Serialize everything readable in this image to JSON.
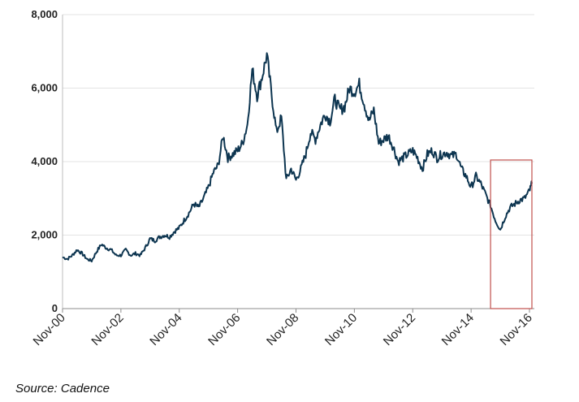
{
  "chart_data": {
    "type": "line",
    "title": "",
    "xlabel": "",
    "ylabel": "",
    "ylim": [
      0,
      8000
    ],
    "y_ticks": [
      "0",
      "2,000",
      "4,000",
      "6,000",
      "8,000"
    ],
    "x_ticks": [
      "Nov-00",
      "Nov-02",
      "Nov-04",
      "Nov-06",
      "Nov-08",
      "Nov-10",
      "Nov-12",
      "Nov-14",
      "Nov-16"
    ],
    "grid": "horizontal",
    "legend": "none",
    "line_color": "#0d3550",
    "highlight_color": "#c0504d",
    "highlight_box": {
      "x_start": "Jul-15",
      "x_end": "Jan-17",
      "y_start": 0,
      "y_end": 4000
    },
    "series": [
      {
        "x": [
          "Nov-00",
          "Jan-01",
          "Mar-01",
          "May-01",
          "Jul-01",
          "Sep-01",
          "Nov-01",
          "Jan-02",
          "Mar-02",
          "May-02",
          "Jul-02",
          "Sep-02",
          "Nov-02",
          "Jan-03",
          "Mar-03",
          "May-03",
          "Jul-03",
          "Sep-03",
          "Nov-03",
          "Jan-04",
          "Mar-04",
          "May-04",
          "Jul-04",
          "Sep-04",
          "Nov-04",
          "Jan-05",
          "Mar-05",
          "May-05",
          "Jul-05",
          "Sep-05",
          "Nov-05",
          "Jan-06",
          "Mar-06",
          "May-06",
          "Jul-06",
          "Sep-06",
          "Nov-06",
          "Jan-07",
          "Mar-07",
          "May-07",
          "Jul-07",
          "Sep-07",
          "Nov-07",
          "Jan-08",
          "Mar-08",
          "May-08",
          "Jul-08",
          "Sep-08",
          "Nov-08",
          "Jan-09",
          "Mar-09",
          "May-09",
          "Jul-09",
          "Sep-09",
          "Nov-09",
          "Jan-10",
          "Mar-10",
          "May-10",
          "Jul-10",
          "Sep-10",
          "Nov-10",
          "Jan-11",
          "Mar-11",
          "May-11",
          "Jul-11",
          "Sep-11",
          "Nov-11",
          "Jan-12",
          "Mar-12",
          "May-12",
          "Jul-12",
          "Sep-12",
          "Nov-12",
          "Jan-13",
          "Mar-13",
          "May-13",
          "Jul-13",
          "Sep-13",
          "Nov-13",
          "Jan-14",
          "Mar-14",
          "May-14",
          "Jul-14",
          "Sep-14",
          "Nov-14",
          "Jan-15",
          "Mar-15",
          "May-15",
          "Jul-15",
          "Sep-15",
          "Nov-15",
          "Jan-16",
          "Mar-16",
          "May-16",
          "Jul-16",
          "Sep-16",
          "Nov-16",
          "Dec-16"
        ],
        "values": [
          1400,
          1350,
          1450,
          1600,
          1500,
          1350,
          1300,
          1550,
          1750,
          1650,
          1600,
          1450,
          1450,
          1600,
          1450,
          1500,
          1450,
          1650,
          1900,
          1850,
          1950,
          2000,
          1950,
          2100,
          2200,
          2400,
          2600,
          2850,
          2750,
          3000,
          3300,
          3700,
          3900,
          4700,
          4100,
          4200,
          4300,
          4500,
          5000,
          6500,
          5800,
          6300,
          6900,
          5800,
          4800,
          5200,
          3500,
          3800,
          3500,
          3800,
          4200,
          4800,
          4600,
          5000,
          5300,
          5100,
          5700,
          5400,
          5500,
          6000,
          5900,
          6100,
          5600,
          5100,
          5400,
          4500,
          4600,
          4700,
          4400,
          4000,
          4100,
          4200,
          4300,
          4100,
          3800,
          4200,
          4300,
          4100,
          4200,
          4250,
          4150,
          4200,
          3800,
          3600,
          3300,
          3600,
          3400,
          3100,
          2800,
          2400,
          2150,
          2500,
          2750,
          2850,
          2950,
          3000,
          3200,
          3400
        ]
      }
    ]
  },
  "footer": {
    "source": "Source: Cadence"
  }
}
